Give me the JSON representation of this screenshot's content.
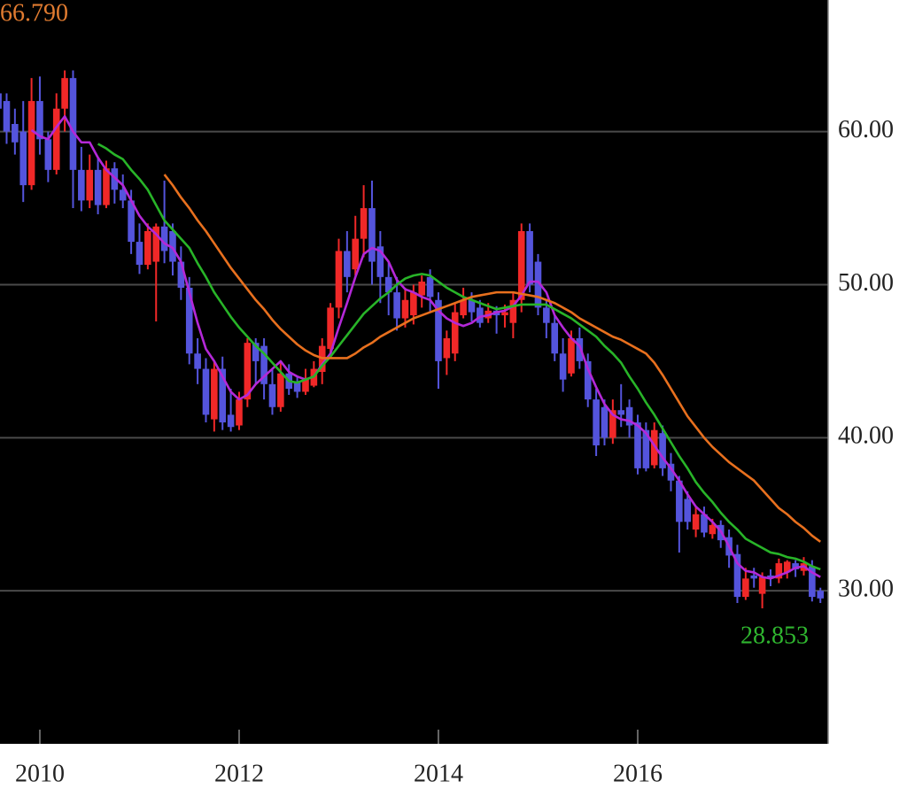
{
  "chart_data": {
    "type": "candlestick",
    "categories": [
      null,
      null,
      null,
      null,
      null,
      "2010",
      null,
      null,
      null,
      null,
      null,
      null,
      null,
      null,
      null,
      null,
      null,
      null,
      null,
      null,
      null,
      null,
      null,
      null,
      null,
      null,
      null,
      null,
      null,
      "2012",
      null,
      null,
      null,
      null,
      null,
      null,
      null,
      null,
      null,
      null,
      null,
      null,
      null,
      null,
      null,
      null,
      null,
      null,
      null,
      null,
      null,
      null,
      null,
      "2014",
      null,
      null,
      null,
      null,
      null,
      null,
      null,
      null,
      null,
      null,
      null,
      null,
      null,
      null,
      null,
      null,
      null,
      null,
      null,
      null,
      null,
      null,
      null,
      "2016",
      null,
      null,
      null,
      null,
      null,
      null,
      null,
      null,
      null,
      null,
      null,
      null,
      null,
      null,
      null,
      null,
      null,
      null,
      null,
      null,
      null,
      null
    ],
    "open": [
      62.5,
      62,
      60.5,
      60,
      56.5,
      62,
      59.5,
      57.5,
      61.5,
      63.5,
      57.5,
      55.5,
      57.5,
      55.2,
      57.6,
      56.2,
      55.5,
      52.8,
      51.3,
      51.5,
      53.8,
      53.5,
      51.5,
      49.8,
      45.5,
      44.5,
      41.2,
      44.5,
      41.5,
      40.8,
      42.5,
      46.2,
      46,
      43.5,
      42,
      44.2,
      43.6,
      43,
      43.4,
      44.3,
      45.8,
      48.5,
      52.2,
      51,
      53,
      55,
      52.5,
      50.5,
      49.5,
      47.8,
      48,
      49.3,
      50.5,
      49,
      45.2,
      45.5,
      48,
      49,
      48.5,
      47.8,
      48.3,
      48,
      47.5,
      49,
      53.5,
      51.5,
      48.5,
      47.5,
      45.5,
      44.2,
      46.5,
      45,
      42.5,
      42,
      40,
      41.8,
      42,
      41,
      40.5,
      38.2,
      40.3,
      38.3,
      37.2,
      36,
      34,
      35,
      33.7,
      34.3,
      33.5,
      32.4,
      29.6,
      31,
      29.8,
      31,
      30.8,
      31.2,
      31.8,
      31.3,
      31.6,
      30
    ],
    "high": [
      66.79,
      62.5,
      61.5,
      62,
      63.5,
      63.6,
      60,
      62.5,
      64,
      64,
      59,
      58.5,
      58.3,
      58.1,
      58,
      57.2,
      56.2,
      54,
      54,
      54,
      56.8,
      54,
      52.5,
      50.5,
      46.5,
      45.2,
      45,
      45.3,
      43.2,
      43,
      46.5,
      46.5,
      46.5,
      44.5,
      45,
      44.8,
      44,
      44.5,
      45,
      46.5,
      48.8,
      53,
      53.5,
      54.5,
      56.5,
      56.8,
      53.5,
      51.5,
      50.5,
      49.8,
      50,
      50.6,
      51,
      49.5,
      47,
      48.8,
      49.8,
      49.5,
      49,
      48.8,
      48.6,
      48.7,
      49.5,
      54,
      54,
      52,
      49,
      48,
      46.5,
      47,
      47.2,
      45.5,
      43.2,
      42.5,
      42.5,
      43.5,
      42.5,
      41.5,
      41,
      41,
      40.8,
      39,
      37.5,
      36.5,
      35.5,
      35.5,
      34.7,
      34.6,
      34,
      33,
      31.5,
      31.5,
      31.2,
      31.4,
      32.1,
      32,
      32,
      32.2,
      32,
      30.2
    ],
    "low": [
      59.9,
      59.2,
      58.5,
      55.4,
      56.2,
      58.5,
      56.7,
      57.2,
      60,
      55,
      54.8,
      55,
      54.6,
      55,
      55.3,
      55,
      52,
      50.7,
      51,
      47.6,
      51.4,
      50.6,
      49,
      44.8,
      43.5,
      41,
      40.4,
      40.5,
      40.4,
      40.5,
      42,
      43.5,
      42.5,
      41.5,
      41.7,
      42.8,
      42.6,
      42.8,
      43.3,
      43.5,
      45.2,
      47.8,
      49.5,
      50.6,
      51.8,
      50,
      48.8,
      48,
      47,
      47.2,
      47.4,
      48.5,
      48.2,
      43.2,
      44.1,
      45,
      47.8,
      47.6,
      47.2,
      47.5,
      46.8,
      47.2,
      46.5,
      48.2,
      49.5,
      48,
      46.5,
      45,
      43,
      44,
      44.5,
      42,
      38.8,
      39.5,
      39.6,
      40.7,
      40,
      37.6,
      37.8,
      38,
      37.5,
      36.5,
      32.5,
      34,
      33.5,
      33.5,
      33.4,
      32.8,
      31.5,
      29.2,
      29.4,
      30.2,
      28.853,
      30.3,
      30.5,
      30.8,
      30.9,
      31,
      29.3,
      29.2
    ],
    "close": [
      61.5,
      60,
      59.3,
      56.5,
      62,
      59.5,
      57.5,
      61.5,
      63.5,
      57.5,
      55.5,
      57.5,
      55.2,
      57.6,
      56.2,
      55.5,
      52.8,
      51.3,
      53.5,
      53.8,
      52.2,
      51.5,
      49.8,
      45.5,
      44.5,
      41.5,
      44.5,
      41,
      40.7,
      42.5,
      46.2,
      45,
      43.5,
      42,
      44.2,
      43.2,
      43,
      43.8,
      44.5,
      46,
      48.5,
      52.2,
      50.5,
      53,
      55,
      51.5,
      50.5,
      49.5,
      47.8,
      49,
      49.5,
      50.2,
      49.2,
      45,
      46.5,
      48.2,
      49,
      48.2,
      47.5,
      48.3,
      48,
      48.2,
      49,
      53.5,
      50,
      48.5,
      47.5,
      45.5,
      43.8,
      46.5,
      45,
      42.5,
      39.5,
      40,
      41.8,
      41.5,
      40.8,
      38,
      38,
      40.5,
      38,
      37.2,
      34.5,
      34.5,
      35,
      33.8,
      34.3,
      33.3,
      32.3,
      29.6,
      30.8,
      30.8,
      30.9,
      30.8,
      31.8,
      31.9,
      31.4,
      31.8,
      29.6,
      29.5
    ],
    "up_color": "#f02828",
    "down_color": "#5454dc",
    "lines": [
      {
        "color": "#b428d8",
        "values": [
          null,
          null,
          null,
          null,
          60.1,
          59.7,
          59.5,
          60.3,
          61,
          60,
          59.3,
          59.3,
          58.3,
          57.5,
          57,
          56.5,
          55.5,
          54.5,
          53.8,
          53.3,
          52.7,
          52.4,
          51.5,
          49.5,
          47.5,
          45.8,
          45,
          44,
          43,
          42.5,
          42.8,
          43.5,
          44,
          44.5,
          45,
          44.3,
          44,
          43.8,
          44,
          44.8,
          45.5,
          47.2,
          48.8,
          50.5,
          52,
          52.4,
          52.2,
          51.5,
          50.3,
          49.7,
          49.5,
          49.2,
          49,
          48.3,
          47.8,
          47.5,
          47.3,
          47.5,
          47.9,
          48,
          48.2,
          48.3,
          48.6,
          49.3,
          50.2,
          50.2,
          49.5,
          48,
          47.2,
          46.5,
          46,
          44.5,
          43.3,
          42.2,
          41.5,
          41.2,
          41.1,
          40.8,
          40.3,
          39.5,
          38.7,
          38,
          37.2,
          36.3,
          35.5,
          35,
          34.5,
          33.9,
          32.9,
          31.8,
          31.3,
          31.2,
          30.9,
          30.8,
          31,
          31.2,
          31.5,
          31.6,
          31.2,
          30.9
        ]
      },
      {
        "color": "#28b428",
        "values": [
          null,
          null,
          null,
          null,
          null,
          null,
          null,
          null,
          null,
          null,
          null,
          null,
          59.2,
          58.9,
          58.5,
          58.2,
          57.5,
          56.9,
          56.2,
          55.2,
          54.2,
          53.6,
          53,
          52.4,
          51.4,
          50.5,
          49.5,
          48.7,
          47.9,
          47.2,
          46.6,
          46,
          45.5,
          44.9,
          44.3,
          43.7,
          43.6,
          43.8,
          44,
          44.7,
          45.3,
          46,
          46.7,
          47.4,
          48.1,
          48.6,
          49.1,
          49.5,
          50,
          50.4,
          50.6,
          50.7,
          50.6,
          50.2,
          49.8,
          49.5,
          49.2,
          49,
          48.8,
          48.6,
          48.4,
          48.5,
          48.6,
          48.7,
          48.7,
          48.7,
          48.7,
          48.4,
          48.1,
          47.8,
          47.4,
          47,
          46.6,
          46,
          45.5,
          44.9,
          44,
          43.2,
          42.3,
          41.5,
          40.6,
          39.7,
          38.8,
          38,
          37.1,
          36.4,
          35.8,
          35.1,
          34.5,
          34,
          33.4,
          33.1,
          32.8,
          32.5,
          32.4,
          32.2,
          32.1,
          31.9,
          31.6,
          31.4
        ]
      },
      {
        "color": "#e8701e",
        "values": [
          null,
          null,
          null,
          null,
          null,
          null,
          null,
          null,
          null,
          null,
          null,
          null,
          null,
          null,
          null,
          null,
          null,
          null,
          null,
          null,
          57.2,
          56.5,
          55.7,
          55,
          54.2,
          53.5,
          52.7,
          51.9,
          51.1,
          50.4,
          49.7,
          49,
          48.4,
          47.7,
          47.1,
          46.6,
          46.1,
          45.7,
          45.4,
          45.2,
          45.2,
          45.2,
          45.2,
          45.5,
          45.9,
          46.2,
          46.6,
          46.9,
          47.2,
          47.5,
          47.8,
          48,
          48.2,
          48.4,
          48.6,
          48.8,
          49,
          49.2,
          49.3,
          49.4,
          49.5,
          49.5,
          49.5,
          49.4,
          49.3,
          49.2,
          49,
          48.8,
          48.5,
          48.2,
          47.8,
          47.5,
          47.2,
          46.9,
          46.6,
          46.4,
          46.1,
          45.8,
          45.5,
          44.9,
          44.1,
          43.2,
          42.3,
          41.4,
          40.7,
          40,
          39.4,
          38.9,
          38.4,
          38,
          37.6,
          37.2,
          36.6,
          36,
          35.4,
          35,
          34.5,
          34.1,
          33.6,
          33.2
        ]
      }
    ],
    "ylim": [
      20,
      68.6
    ],
    "yticks": [
      {
        "value": 30,
        "label": "30.00"
      },
      {
        "value": 40,
        "label": "40.00"
      },
      {
        "value": 50,
        "label": "50.00"
      },
      {
        "value": 60,
        "label": "60.00"
      }
    ],
    "grid": true,
    "high_label": {
      "text": "66.790",
      "color": "#e07b30"
    },
    "low_label": {
      "text": "28.853",
      "color": "#2fb52f"
    }
  }
}
